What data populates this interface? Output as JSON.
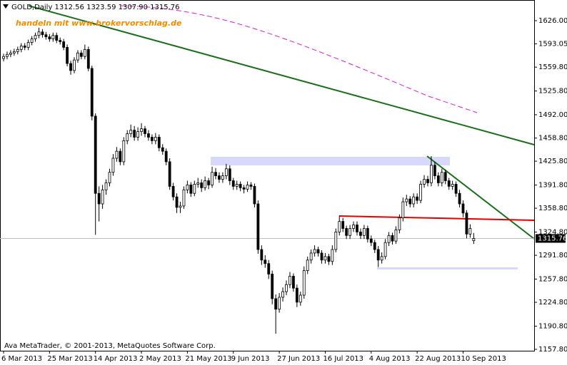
{
  "chart_data": {
    "type": "candlestick",
    "header": "GOLD,Daily  1312.56 1323.59 1307.90 1315.76",
    "watermark": "handeln mit www.brokervorschlag.de",
    "footer": "Ava MetaTrader, © 2001-2013, MetaQuotes Software Corp.",
    "up_color": "#ffffff",
    "down_color": "#000000",
    "wick_color": "#000000",
    "current_price": 1315.76,
    "ylim": [
      1155.8,
      1655.45
    ],
    "yticks": [
      {
        "value": 1626,
        "label": "1626.00"
      },
      1593.05,
      {
        "value": 1559.8,
        "label": "1559.80"
      },
      {
        "value": 1525.8,
        "label": "1525.80"
      },
      {
        "value": 1492,
        "label": "1492.00"
      },
      {
        "value": 1458.8,
        "label": "1458.80"
      },
      {
        "value": 1425.8,
        "label": "1425.80"
      },
      {
        "value": 1391.8,
        "label": "1391.80"
      },
      {
        "value": 1358.8,
        "label": "1358.80"
      },
      {
        "value": 1324.8,
        "label": "1324.80"
      },
      {
        "value": 1291.8,
        "label": "1291.80"
      },
      {
        "value": 1257.8,
        "label": "1257.80"
      },
      {
        "value": 1224.8,
        "label": "1224.80"
      },
      {
        "value": 1190.8,
        "label": "1190.80"
      },
      {
        "value": 1157.8,
        "label": "1157.80"
      }
    ],
    "categories": [
      "6 Mar 2013",
      null,
      null,
      null,
      null,
      null,
      null,
      null,
      null,
      null,
      null,
      null,
      null,
      "25 Mar 2013",
      null,
      null,
      null,
      null,
      null,
      null,
      null,
      null,
      null,
      null,
      null,
      null,
      "14 Apr 2013",
      null,
      null,
      null,
      null,
      null,
      null,
      null,
      null,
      null,
      null,
      null,
      null,
      "2 May 2013",
      null,
      null,
      null,
      null,
      null,
      null,
      null,
      null,
      null,
      null,
      null,
      null,
      "21 May 2013",
      null,
      null,
      null,
      null,
      null,
      null,
      null,
      null,
      null,
      null,
      null,
      null,
      "9 Jun 2013",
      null,
      null,
      null,
      null,
      null,
      null,
      null,
      null,
      null,
      null,
      null,
      null,
      "27 Jun 2013",
      null,
      null,
      null,
      null,
      null,
      null,
      null,
      null,
      null,
      null,
      null,
      null,
      "16 Jul 2013",
      null,
      null,
      null,
      null,
      null,
      null,
      null,
      null,
      null,
      null,
      null,
      null,
      "4 Aug 2013",
      null,
      null,
      null,
      null,
      null,
      null,
      null,
      null,
      null,
      null,
      null,
      null,
      "22 Aug 2013",
      null,
      null,
      null,
      null,
      null,
      null,
      null,
      null,
      null,
      null,
      null,
      null,
      "10 Sep 2013",
      null,
      null,
      null
    ],
    "candles": [
      [
        1572,
        1579,
        1568,
        1575
      ],
      [
        1575,
        1582,
        1571,
        1578
      ],
      [
        1578,
        1584,
        1574,
        1580
      ],
      [
        1580,
        1586,
        1576,
        1582
      ],
      [
        1582,
        1589,
        1578,
        1585
      ],
      [
        1585,
        1594,
        1581,
        1590
      ],
      [
        1590,
        1594,
        1584,
        1588
      ],
      [
        1588,
        1599,
        1584,
        1595
      ],
      [
        1595,
        1604,
        1591,
        1600
      ],
      [
        1600,
        1609,
        1596,
        1605
      ],
      [
        1605,
        1616,
        1601,
        1610
      ],
      [
        1610,
        1614,
        1602,
        1606
      ],
      [
        1606,
        1610,
        1599,
        1603
      ],
      [
        1603,
        1607,
        1596,
        1600
      ],
      [
        1600,
        1609,
        1596,
        1605
      ],
      [
        1605,
        1609,
        1594,
        1598
      ],
      [
        1598,
        1602,
        1592,
        1596
      ],
      [
        1596,
        1600,
        1584,
        1588
      ],
      [
        1588,
        1592,
        1561,
        1565
      ],
      [
        1565,
        1569,
        1549,
        1555
      ],
      [
        1555,
        1574,
        1551,
        1570
      ],
      [
        1570,
        1584,
        1566,
        1580
      ],
      [
        1580,
        1584,
        1571,
        1575
      ],
      [
        1575,
        1592,
        1571,
        1585
      ],
      [
        1585,
        1589,
        1554,
        1558
      ],
      [
        1558,
        1562,
        1484,
        1490
      ],
      [
        1490,
        1494,
        1321,
        1380
      ],
      [
        1380,
        1390,
        1340,
        1365
      ],
      [
        1365,
        1392,
        1358,
        1385
      ],
      [
        1385,
        1400,
        1378,
        1395
      ],
      [
        1395,
        1415,
        1390,
        1410
      ],
      [
        1410,
        1436,
        1405,
        1430
      ],
      [
        1430,
        1446,
        1425,
        1440
      ],
      [
        1440,
        1444,
        1420,
        1425
      ],
      [
        1425,
        1460,
        1420,
        1455
      ],
      [
        1455,
        1470,
        1450,
        1465
      ],
      [
        1465,
        1478,
        1460,
        1470
      ],
      [
        1470,
        1476,
        1455,
        1460
      ],
      [
        1460,
        1474,
        1455,
        1468
      ],
      [
        1468,
        1480,
        1462,
        1472
      ],
      [
        1472,
        1476,
        1460,
        1465
      ],
      [
        1465,
        1470,
        1455,
        1460
      ],
      [
        1460,
        1464,
        1450,
        1455
      ],
      [
        1455,
        1466,
        1450,
        1460
      ],
      [
        1460,
        1464,
        1440,
        1445
      ],
      [
        1445,
        1450,
        1435,
        1440
      ],
      [
        1440,
        1444,
        1420,
        1425
      ],
      [
        1425,
        1430,
        1385,
        1390
      ],
      [
        1390,
        1395,
        1370,
        1375
      ],
      [
        1375,
        1380,
        1352,
        1360
      ],
      [
        1360,
        1368,
        1352,
        1362
      ],
      [
        1362,
        1390,
        1358,
        1385
      ],
      [
        1385,
        1398,
        1380,
        1392
      ],
      [
        1392,
        1396,
        1375,
        1380
      ],
      [
        1380,
        1398,
        1376,
        1393
      ],
      [
        1393,
        1402,
        1388,
        1395
      ],
      [
        1395,
        1400,
        1382,
        1388
      ],
      [
        1388,
        1404,
        1384,
        1398
      ],
      [
        1398,
        1402,
        1386,
        1392
      ],
      [
        1392,
        1418,
        1388,
        1410
      ],
      [
        1410,
        1416,
        1400,
        1405
      ],
      [
        1405,
        1410,
        1395,
        1400
      ],
      [
        1400,
        1410,
        1395,
        1405
      ],
      [
        1405,
        1422,
        1400,
        1415
      ],
      [
        1415,
        1420,
        1392,
        1398
      ],
      [
        1398,
        1402,
        1385,
        1390
      ],
      [
        1390,
        1398,
        1385,
        1393
      ],
      [
        1393,
        1397,
        1383,
        1388
      ],
      [
        1388,
        1392,
        1380,
        1386
      ],
      [
        1386,
        1397,
        1382,
        1392
      ],
      [
        1392,
        1396,
        1385,
        1390
      ],
      [
        1390,
        1394,
        1360,
        1365
      ],
      [
        1365,
        1370,
        1294,
        1300
      ],
      [
        1300,
        1306,
        1278,
        1285
      ],
      [
        1285,
        1292,
        1274,
        1280
      ],
      [
        1280,
        1285,
        1258,
        1265
      ],
      [
        1265,
        1270,
        1222,
        1230
      ],
      [
        1230,
        1236,
        1180,
        1215
      ],
      [
        1215,
        1238,
        1210,
        1232
      ],
      [
        1232,
        1246,
        1226,
        1240
      ],
      [
        1240,
        1256,
        1235,
        1250
      ],
      [
        1250,
        1268,
        1245,
        1262
      ],
      [
        1262,
        1266,
        1240,
        1245
      ],
      [
        1245,
        1250,
        1218,
        1225
      ],
      [
        1225,
        1240,
        1220,
        1235
      ],
      [
        1235,
        1276,
        1230,
        1270
      ],
      [
        1270,
        1290,
        1265,
        1285
      ],
      [
        1285,
        1300,
        1280,
        1295
      ],
      [
        1295,
        1306,
        1290,
        1300
      ],
      [
        1300,
        1304,
        1290,
        1295
      ],
      [
        1295,
        1299,
        1280,
        1285
      ],
      [
        1285,
        1295,
        1280,
        1290
      ],
      [
        1290,
        1294,
        1278,
        1283
      ],
      [
        1283,
        1306,
        1278,
        1300
      ],
      [
        1300,
        1330,
        1296,
        1325
      ],
      [
        1325,
        1348,
        1320,
        1340
      ],
      [
        1340,
        1345,
        1325,
        1330
      ],
      [
        1330,
        1334,
        1315,
        1320
      ],
      [
        1320,
        1335,
        1315,
        1330
      ],
      [
        1330,
        1340,
        1325,
        1335
      ],
      [
        1335,
        1340,
        1320,
        1325
      ],
      [
        1325,
        1330,
        1315,
        1320
      ],
      [
        1320,
        1335,
        1315,
        1330
      ],
      [
        1330,
        1334,
        1310,
        1315
      ],
      [
        1315,
        1320,
        1305,
        1310
      ],
      [
        1310,
        1314,
        1295,
        1300
      ],
      [
        1300,
        1305,
        1275,
        1285
      ],
      [
        1285,
        1296,
        1280,
        1290
      ],
      [
        1290,
        1315,
        1286,
        1310
      ],
      [
        1310,
        1325,
        1305,
        1320
      ],
      [
        1320,
        1324,
        1307,
        1312
      ],
      [
        1312,
        1333,
        1308,
        1328
      ],
      [
        1328,
        1350,
        1323,
        1345
      ],
      [
        1345,
        1374,
        1340,
        1368
      ],
      [
        1368,
        1378,
        1362,
        1372
      ],
      [
        1372,
        1376,
        1360,
        1365
      ],
      [
        1365,
        1380,
        1360,
        1375
      ],
      [
        1375,
        1380,
        1365,
        1370
      ],
      [
        1370,
        1398,
        1366,
        1393
      ],
      [
        1393,
        1406,
        1388,
        1400
      ],
      [
        1400,
        1405,
        1390,
        1395
      ],
      [
        1395,
        1433,
        1390,
        1420
      ],
      [
        1420,
        1425,
        1400,
        1405
      ],
      [
        1405,
        1410,
        1390,
        1395
      ],
      [
        1395,
        1415,
        1390,
        1410
      ],
      [
        1410,
        1414,
        1393,
        1398
      ],
      [
        1398,
        1402,
        1385,
        1390
      ],
      [
        1390,
        1398,
        1385,
        1393
      ],
      [
        1393,
        1397,
        1375,
        1380
      ],
      [
        1380,
        1385,
        1360,
        1365
      ],
      [
        1365,
        1370,
        1346,
        1352
      ],
      [
        1352,
        1356,
        1316,
        1322
      ],
      [
        1322,
        1336,
        1317,
        1330
      ],
      [
        1312.56,
        1323.59,
        1307.9,
        1315.76
      ]
    ]
  }
}
